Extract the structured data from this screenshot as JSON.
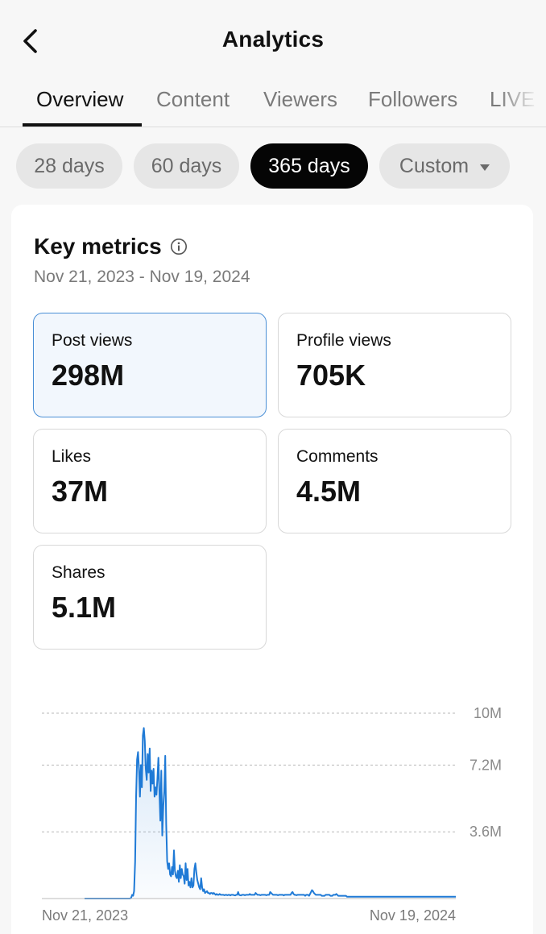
{
  "header": {
    "title": "Analytics"
  },
  "tabs": [
    {
      "label": "Overview",
      "active": true
    },
    {
      "label": "Content",
      "active": false
    },
    {
      "label": "Viewers",
      "active": false
    },
    {
      "label": "Followers",
      "active": false
    },
    {
      "label": "LIVE",
      "active": false
    }
  ],
  "ranges": [
    {
      "label": "28 days",
      "active": false
    },
    {
      "label": "60 days",
      "active": false
    },
    {
      "label": "365 days",
      "active": true
    },
    {
      "label": "Custom",
      "active": false,
      "dropdown": true
    }
  ],
  "key_metrics": {
    "title": "Key metrics",
    "date_range": "Nov 21, 2023 - Nov 19, 2024",
    "items": [
      {
        "label": "Post views",
        "value": "298M",
        "selected": true
      },
      {
        "label": "Profile views",
        "value": "705K",
        "selected": false
      },
      {
        "label": "Likes",
        "value": "37M",
        "selected": false
      },
      {
        "label": "Comments",
        "value": "4.5M",
        "selected": false
      },
      {
        "label": "Shares",
        "value": "5.1M",
        "selected": false
      }
    ]
  },
  "chart_data": {
    "type": "area",
    "series": [
      {
        "values": [
          0,
          0,
          0,
          0,
          0,
          0,
          0,
          0,
          0,
          0,
          0,
          0,
          0,
          0,
          0,
          0,
          0,
          0,
          0,
          0,
          0,
          0,
          0,
          0,
          0,
          0,
          0,
          0,
          0,
          0,
          0,
          0,
          0,
          0,
          0,
          0,
          0,
          0,
          0,
          0,
          0,
          0,
          0,
          0,
          0,
          0,
          0,
          0,
          0.05,
          0.2,
          0.15,
          0.4,
          2.0,
          5.5,
          7.5,
          7.9,
          7.0,
          5.5,
          7.2,
          6.0,
          8.8,
          9.2,
          8.5,
          7.0,
          6.4,
          7.8,
          6.8,
          8.1,
          5.8,
          6.9,
          6.2,
          7.0,
          5.5,
          6.0,
          5.6,
          6.5,
          7.6,
          5.8,
          4.2,
          6.9,
          3.4,
          5.0,
          5.8,
          7.7,
          4.0,
          2.0,
          1.6,
          1.9,
          1.3,
          1.2,
          1.7,
          1.3,
          2.6,
          1.5,
          1.2,
          1.1,
          1.5,
          0.9,
          1.8,
          1.1,
          1.6,
          1.3,
          1.2,
          0.8,
          1.9,
          1.0,
          1.6,
          0.7,
          0.9,
          0.6,
          1.1,
          0.6,
          0.7,
          1.6,
          1.9,
          1.4,
          1.0,
          0.8,
          0.6,
          0.5,
          1.1,
          0.6,
          0.4,
          0.5,
          0.3,
          0.35,
          0.4,
          0.3,
          0.3,
          0.25,
          0.3,
          0.3,
          0.25,
          0.3,
          0.25,
          0.2,
          0.25,
          0.2,
          0.2,
          0.25,
          0.2,
          0.2,
          0.2,
          0.2,
          0.18,
          0.2,
          0.2,
          0.18,
          0.2,
          0.2,
          0.17,
          0.2,
          0.2,
          0.2,
          0.18,
          0.17,
          0.2,
          0.2,
          0.35,
          0.2,
          0.18,
          0.17,
          0.2,
          0.2,
          0.2,
          0.18,
          0.2,
          0.2,
          0.2,
          0.2,
          0.25,
          0.2,
          0.2,
          0.2,
          0.2,
          0.2,
          0.3,
          0.25,
          0.2,
          0.2,
          0.2,
          0.18,
          0.2,
          0.2,
          0.2,
          0.2,
          0.2,
          0.18,
          0.2,
          0.2,
          0.2,
          0.35,
          0.3,
          0.25,
          0.2,
          0.2,
          0.2,
          0.2,
          0.2,
          0.18,
          0.2,
          0.2,
          0.2,
          0.2,
          0.2,
          0.17,
          0.2,
          0.2,
          0.2,
          0.2,
          0.2,
          0.2,
          0.2,
          0.3,
          0.35,
          0.25,
          0.2,
          0.2,
          0.18,
          0.2,
          0.2,
          0.2,
          0.2,
          0.2,
          0.2,
          0.2,
          0.2,
          0.15,
          0.2,
          0.2,
          0.2,
          0.15,
          0.25,
          0.35,
          0.45,
          0.4,
          0.3,
          0.25,
          0.2,
          0.2,
          0.2,
          0.2,
          0.2,
          0.2,
          0.15,
          0.15,
          0.15,
          0.15,
          0.2,
          0.2,
          0.2,
          0.2,
          0.2,
          0.15,
          0.15,
          0.15,
          0.2,
          0.2,
          0.2,
          0.25,
          0.2,
          0.15,
          0.15,
          0.15,
          0.15,
          0.15,
          0.15,
          0.15,
          0.15,
          0.15,
          0.1,
          0.1,
          0.1,
          0.1,
          0.1,
          0.1,
          0.1,
          0.1,
          0.1,
          0.1,
          0.1,
          0.1,
          0.1,
          0.1,
          0.1,
          0.1,
          0.1,
          0.1,
          0.1,
          0.1,
          0.1,
          0.1,
          0.1,
          0.1,
          0.1,
          0.1,
          0.1,
          0.1,
          0.1,
          0.1,
          0.1,
          0.1,
          0.1,
          0.1,
          0.1,
          0.1,
          0.1,
          0.1,
          0.1,
          0.1,
          0.1,
          0.1,
          0.1,
          0.1,
          0.1,
          0.1,
          0.1,
          0.1,
          0.1,
          0.1,
          0.1,
          0.1,
          0.1,
          0.1,
          0.1,
          0.1,
          0.1,
          0.1,
          0.1,
          0.1,
          0.1,
          0.1,
          0.1,
          0.1,
          0.1,
          0.1,
          0.1,
          0.1,
          0.1,
          0.1,
          0.1,
          0.1,
          0.1,
          0.1,
          0.1,
          0.1,
          0.1,
          0.1,
          0.1,
          0.1,
          0.1,
          0.1,
          0.1,
          0.1,
          0.1,
          0.1,
          0.1,
          0.1,
          0.1,
          0.1,
          0.1,
          0.1,
          0.1,
          0.1,
          0.1,
          0.1,
          0.1,
          0.1,
          0.1,
          0.1,
          0.1,
          0.1,
          0.1,
          0.1,
          0.1,
          0.1,
          0.1,
          0.1,
          0.1,
          0.1,
          0.1,
          0.1,
          0.1
        ]
      }
    ],
    "ylim": [
      0,
      10
    ],
    "ytick_labels": [
      "10M",
      "7.2M",
      "3.6M"
    ],
    "x_labels": [
      "Nov 21, 2023",
      "Nov 19, 2024"
    ],
    "line_color": "#1f7ad6",
    "grid": "dashed"
  },
  "colors": {
    "accent": "#1f7ad6",
    "selected_bg": "#f2f7fd",
    "selected_border": "#4a8fd6"
  }
}
